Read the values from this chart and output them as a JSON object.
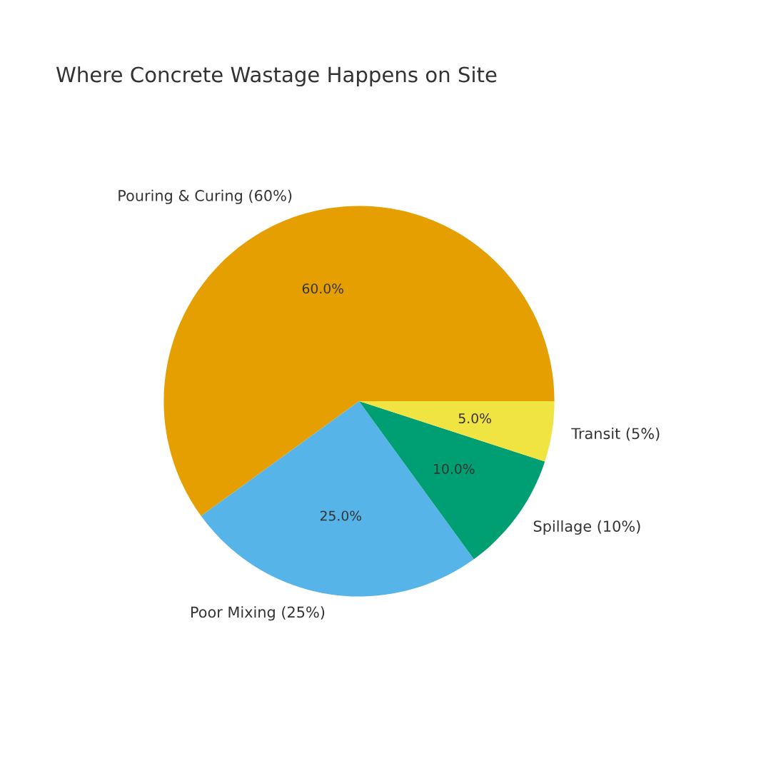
{
  "chart_data": {
    "type": "pie",
    "title": "Where Concrete Wastage Happens on Site",
    "categories": [
      "Pouring & Curing (60%)",
      "Poor Mixing (25%)",
      "Spillage (10%)",
      "Transit (5%)"
    ],
    "values": [
      60,
      25,
      10,
      5
    ],
    "colors": [
      "#e69f00",
      "#56b4e9",
      "#009e73",
      "#f0e442"
    ],
    "value_labels": [
      "60.0%",
      "25.0%",
      "10.0%",
      "5.0%"
    ],
    "legend": false
  }
}
